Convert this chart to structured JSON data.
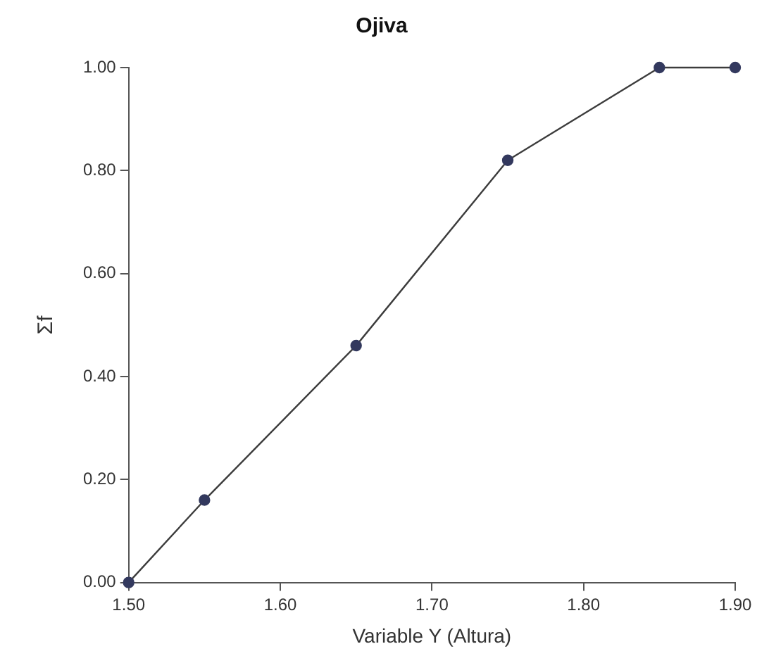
{
  "chart_data": {
    "type": "line",
    "title": "Ojiva",
    "xlabel": "Variable Y (Altura)",
    "ylabel": "Σf",
    "x": [
      1.5,
      1.55,
      1.65,
      1.75,
      1.85,
      1.9
    ],
    "series": [
      {
        "color": "#33395e",
        "values": [
          0,
          0.16,
          0.46,
          0.82,
          1,
          1
        ]
      }
    ],
    "xlim": [
      1.5,
      1.9
    ],
    "xticks": [
      {
        "value": 1.5,
        "label": "1.50"
      },
      {
        "value": 1.6,
        "label": "1.60"
      },
      {
        "value": 1.7,
        "label": "1.70"
      },
      {
        "value": 1.8,
        "label": "1.80"
      },
      {
        "value": 1.9,
        "label": "1.90"
      }
    ],
    "ylim": [
      0,
      1
    ],
    "yticks": [
      {
        "value": 0,
        "label": "0.00"
      },
      {
        "value": 0.2,
        "label": "0.20"
      },
      {
        "value": 0.4,
        "label": "0.40"
      },
      {
        "value": 0.6,
        "label": "0.60"
      },
      {
        "value": 0.8,
        "label": "0.80"
      },
      {
        "value": 1,
        "label": "1.00"
      }
    ],
    "grid": false,
    "legend": false,
    "marker": "circle",
    "line_style": "solid"
  }
}
